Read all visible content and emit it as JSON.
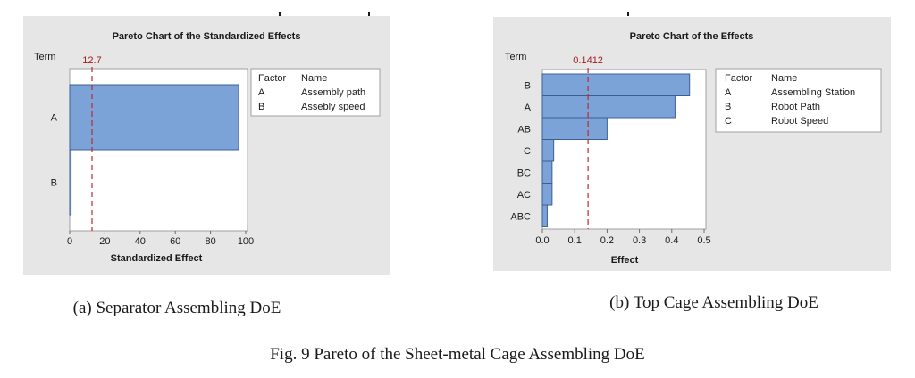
{
  "figure_caption": "Fig. 9 Pareto of the Sheet-metal Cage Assembling DoE",
  "chart_data": [
    {
      "type": "bar",
      "orientation": "horizontal",
      "title": "Pareto Chart of the Standardized Effects",
      "xlabel": "Standardized Effect",
      "ylabel": "Term",
      "categories": [
        "A",
        "B"
      ],
      "values": [
        96,
        0.8
      ],
      "xlim": [
        0,
        100
      ],
      "xticks": [
        0,
        20,
        40,
        60,
        80,
        100
      ],
      "xtick_labels": [
        "0",
        "20",
        "40",
        "60",
        "80",
        "100"
      ],
      "reference_line": {
        "value": 12.7,
        "label": "12.7"
      },
      "legend": {
        "headers": [
          "Factor",
          "Name"
        ],
        "rows": [
          {
            "factor": "A",
            "name": "Assembly path"
          },
          {
            "factor": "B",
            "name": "Assebly speed"
          }
        ]
      },
      "caption": "(a) Separator Assembling DoE"
    },
    {
      "type": "bar",
      "orientation": "horizontal",
      "title": "Pareto Chart of the Effects",
      "xlabel": "Effect",
      "ylabel": "Term",
      "categories": [
        "B",
        "A",
        "AB",
        "C",
        "BC",
        "AC",
        "ABC"
      ],
      "values": [
        0.455,
        0.41,
        0.2,
        0.035,
        0.03,
        0.03,
        0.015
      ],
      "xlim": [
        0,
        0.5
      ],
      "xticks": [
        0,
        0.1,
        0.2,
        0.3,
        0.4,
        0.5
      ],
      "xtick_labels": [
        "0.0",
        "0.1",
        "0.2",
        "0.3",
        "0.4",
        "0.5"
      ],
      "reference_line": {
        "value": 0.1412,
        "label": "0.1412"
      },
      "legend": {
        "headers": [
          "Factor",
          "Name"
        ],
        "rows": [
          {
            "factor": "A",
            "name": "Assembling Station"
          },
          {
            "factor": "B",
            "name": "Robot Path"
          },
          {
            "factor": "C",
            "name": "Robot Speed"
          }
        ]
      },
      "caption": "(b) Top Cage Assembling DoE"
    }
  ]
}
